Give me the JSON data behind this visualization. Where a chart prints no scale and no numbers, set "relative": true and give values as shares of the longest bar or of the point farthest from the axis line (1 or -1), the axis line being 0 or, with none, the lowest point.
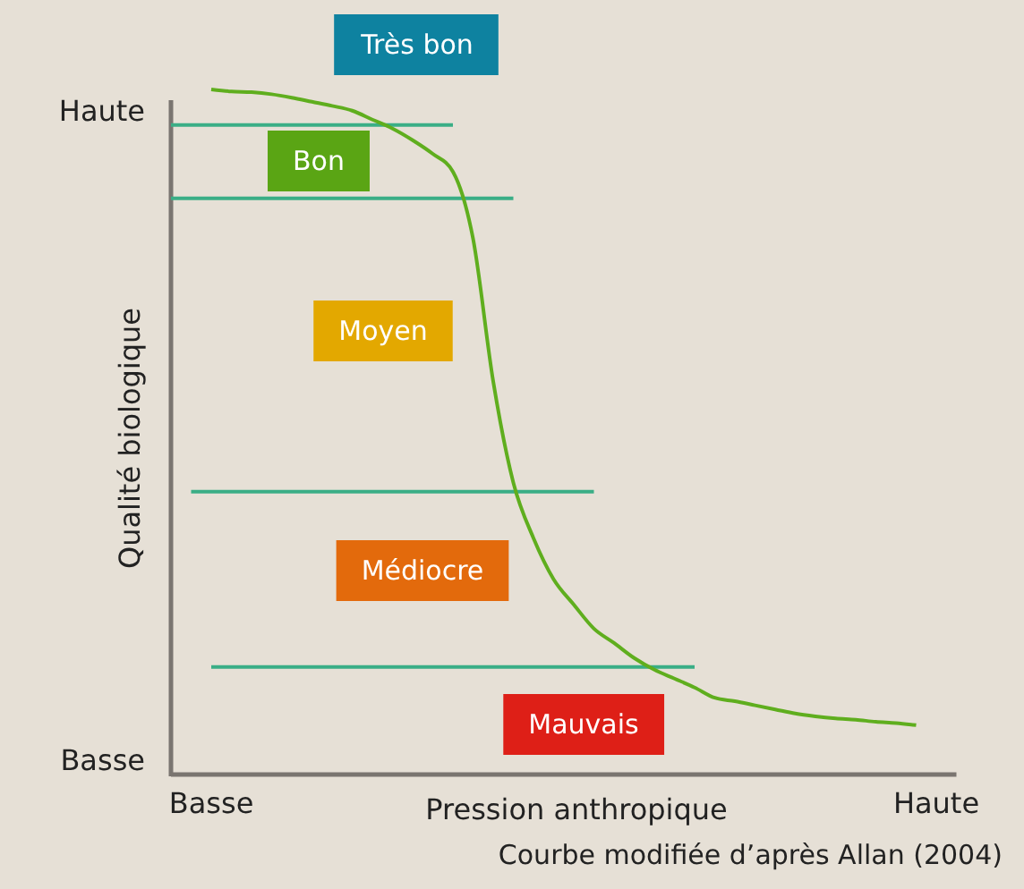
{
  "chart_data": {
    "type": "line",
    "xlabel": "Pression anthropique",
    "ylabel": "Qualité biologique",
    "relative": true,
    "categories": [
      null,
      null,
      "Basse",
      null,
      null,
      null,
      null,
      null,
      null,
      null,
      null,
      null,
      null,
      null,
      null,
      null,
      null,
      null,
      null,
      null,
      null,
      null,
      null,
      null,
      null,
      null,
      null,
      null,
      null,
      null,
      null,
      null,
      null,
      null,
      null,
      null,
      null,
      null,
      "Haute",
      null
    ],
    "grid": false,
    "marker": "none",
    "line_style": "solid",
    "series": [
      {
        "color": "#5fae1e",
        "values": [
          null,
          null,
          1.0,
          0.997,
          0.996,
          0.993,
          0.988,
          0.982,
          0.976,
          0.969,
          0.956,
          0.943,
          0.926,
          0.906,
          0.88,
          0.782,
          0.574,
          0.426,
          0.345,
          0.285,
          0.248,
          0.213,
          0.192,
          0.17,
          0.153,
          0.14,
          0.127,
          0.112,
          0.107,
          0.101,
          0.095,
          0.089,
          0.085,
          0.082,
          0.08,
          0.077,
          0.075,
          0.072,
          null,
          null
        ]
      },
      {
        "color": "#3aae86",
        "values": [
          0.948,
          0.948,
          0.948,
          0.948,
          0.948,
          0.948,
          0.948,
          0.948,
          0.948,
          0.948,
          0.948,
          0.948,
          0.948,
          0.948,
          0.948,
          null,
          null,
          null,
          null,
          null,
          null,
          null,
          null,
          null,
          null,
          null,
          null,
          null,
          null,
          null,
          null,
          null,
          null,
          null,
          null,
          null,
          null,
          null,
          null,
          null
        ]
      },
      {
        "color": "#3aae86",
        "values": [
          0.841,
          0.841,
          0.841,
          0.841,
          0.841,
          0.841,
          0.841,
          0.841,
          0.841,
          0.841,
          0.841,
          0.841,
          0.841,
          0.841,
          0.841,
          0.841,
          0.841,
          0.841,
          null,
          null,
          null,
          null,
          null,
          null,
          null,
          null,
          null,
          null,
          null,
          null,
          null,
          null,
          null,
          null,
          null,
          null,
          null,
          null,
          null,
          null
        ]
      },
      {
        "color": "#3aae86",
        "values": [
          null,
          0.413,
          0.413,
          0.413,
          0.413,
          0.413,
          0.413,
          0.413,
          0.413,
          0.413,
          0.413,
          0.413,
          0.413,
          0.413,
          0.413,
          0.413,
          0.413,
          0.413,
          0.413,
          0.413,
          0.413,
          0.413,
          null,
          null,
          null,
          null,
          null,
          null,
          null,
          null,
          null,
          null,
          null,
          null,
          null,
          null,
          null,
          null,
          null,
          null
        ]
      },
      {
        "color": "#3aae86",
        "values": [
          null,
          null,
          0.157,
          0.157,
          0.157,
          0.157,
          0.157,
          0.157,
          0.157,
          0.157,
          0.157,
          0.157,
          0.157,
          0.157,
          0.157,
          0.157,
          0.157,
          0.157,
          0.157,
          0.157,
          0.157,
          0.157,
          0.157,
          0.157,
          0.157,
          0.157,
          0.157,
          null,
          null,
          null,
          null,
          null,
          null,
          null,
          null,
          null,
          null,
          null,
          null,
          null
        ]
      }
    ],
    "annotations": [
      "Très bon",
      "Bon",
      "Moyen",
      "Médiocre",
      "Mauvais",
      "Haute",
      "Basse",
      "Courbe modifiée d’après Allan (2004)"
    ]
  }
}
